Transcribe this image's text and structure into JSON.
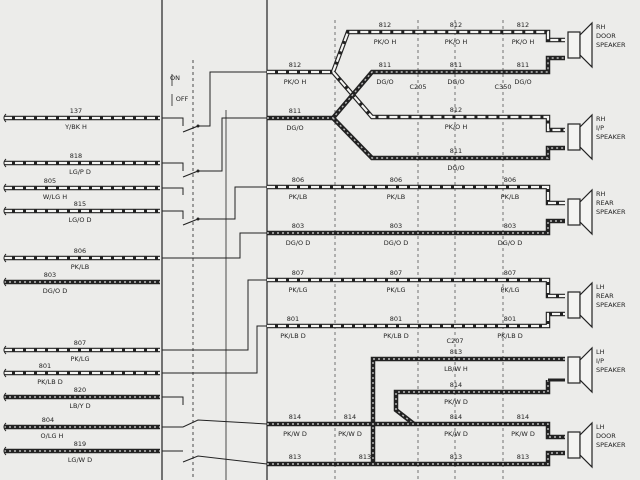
{
  "switch": {
    "on_label": "ON",
    "off_label": "OFF"
  },
  "left_wires": [
    {
      "circuit": "137",
      "color": "Y/BK H"
    },
    {
      "circuit": "818",
      "color": "LG/P D"
    },
    {
      "circuit": "805",
      "color": "W/LG H"
    },
    {
      "circuit": "815",
      "color": "LG/O D"
    },
    {
      "circuit": "806",
      "color": "PK/LB"
    },
    {
      "circuit": "803",
      "color": "DG/O D"
    },
    {
      "circuit": "807",
      "color": "PK/LG"
    },
    {
      "circuit": "801",
      "color": "PK/LB D"
    },
    {
      "circuit": "820",
      "color": "LB/Y D"
    },
    {
      "circuit": "804",
      "color": "O/LG H"
    },
    {
      "circuit": "819",
      "color": "LG/W D"
    }
  ],
  "right": {
    "trunk_812": {
      "circuit": "812",
      "color": "PK/O H"
    },
    "trunk_811": {
      "circuit": "811",
      "color": "DG/O"
    },
    "rh_door_812": [
      {
        "circuit": "812",
        "color": "PK/O H"
      },
      {
        "circuit": "812",
        "color": "PK/O H"
      },
      {
        "circuit": "812",
        "color": "PK/O H"
      }
    ],
    "rh_door_811": [
      {
        "circuit": "811",
        "color": "DG/O"
      },
      {
        "circuit": "811",
        "color": "DG/O"
      },
      {
        "circuit": "811",
        "color": "DG/O"
      }
    ],
    "rh_ip_812": {
      "circuit": "812",
      "color": "PK/O H"
    },
    "rh_ip_811": {
      "circuit": "811",
      "color": "DG/O"
    },
    "rh_rear_806": [
      {
        "circuit": "806",
        "color": "PK/LB"
      },
      {
        "circuit": "806",
        "color": "PK/LB"
      },
      {
        "circuit": "806",
        "color": "PK/LB"
      }
    ],
    "rh_rear_803": [
      {
        "circuit": "803",
        "color": "DG/O D"
      },
      {
        "circuit": "803",
        "color": "DG/O D"
      },
      {
        "circuit": "803",
        "color": "DG/O D"
      }
    ],
    "lh_rear_807": [
      {
        "circuit": "807",
        "color": "PK/LG"
      },
      {
        "circuit": "807",
        "color": "PK/LG"
      },
      {
        "circuit": "807",
        "color": "PK/LG"
      }
    ],
    "lh_rear_801": [
      {
        "circuit": "801",
        "color": "PK/LB D"
      },
      {
        "circuit": "801",
        "color": "PK/LB D"
      },
      {
        "circuit": "801",
        "color": "PK/LB D"
      }
    ],
    "lh_ip_813": {
      "circuit": "813",
      "color": "LB/W H"
    },
    "lh_ip_814": {
      "circuit": "814",
      "color": "PK/W D"
    },
    "lh_door_814": [
      {
        "circuit": "814",
        "color": "PK/W D"
      },
      {
        "circuit": "814",
        "color": "PK/W D"
      },
      {
        "circuit": "814",
        "color": "PK/W D"
      },
      {
        "circuit": "814",
        "color": "PK/W D"
      }
    ],
    "lh_door_813": [
      {
        "circuit": "813"
      },
      {
        "circuit": "813"
      },
      {
        "circuit": "813"
      },
      {
        "circuit": "813"
      }
    ]
  },
  "connectors": {
    "c205": "C205",
    "c350": "C350",
    "c207": "C207"
  },
  "speakers": [
    {
      "side": "RH",
      "location": "DOOR",
      "word": "SPEAKER"
    },
    {
      "side": "RH",
      "location": "I/P",
      "word": "SPEAKER"
    },
    {
      "side": "RH",
      "location": "REAR",
      "word": "SPEAKER"
    },
    {
      "side": "LH",
      "location": "REAR",
      "word": "SPEAKER"
    },
    {
      "side": "LH",
      "location": "I/P",
      "word": "SPEAKER"
    },
    {
      "side": "LH",
      "location": "DOOR",
      "word": "SPEAKER"
    }
  ],
  "colors": {
    "ink": "#222222",
    "paper": "#ececea"
  }
}
